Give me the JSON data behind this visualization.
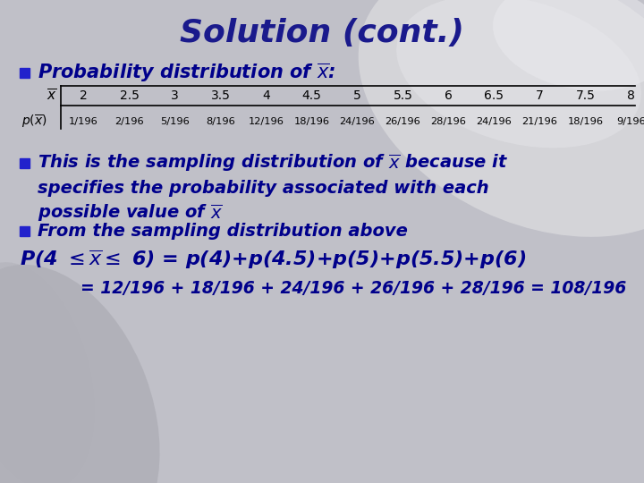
{
  "title": "Solution (cont.)",
  "title_color": "#1a1a8c",
  "title_fontsize": 26,
  "bg_color": "#c0c0c8",
  "bullet_color": "#2222cc",
  "dark_blue": "#00008B",
  "table_x_values": [
    "2",
    "2.5",
    "3",
    "3.5",
    "4",
    "4.5",
    "5",
    "5.5",
    "6",
    "6.5",
    "7",
    "7.5",
    "8"
  ],
  "table_p_values": [
    "1/196",
    "2/196",
    "5/196",
    "8/196",
    "12/196",
    "18/196",
    "24/196",
    "26/196",
    "28/196",
    "24/196",
    "21/196",
    "18/196",
    "9/196"
  ],
  "bullet2_line1": "This is the sampling distribution of ̄x because it",
  "bullet2_line2": "specifies the probability associated with each",
  "bullet2_line3": "possible value of ̄x",
  "bullet3": "From the sampling distribution above",
  "calc_line": "= 12/196 + 18/196 + 24/196 + 26/196 + 28/196 = 108/196"
}
